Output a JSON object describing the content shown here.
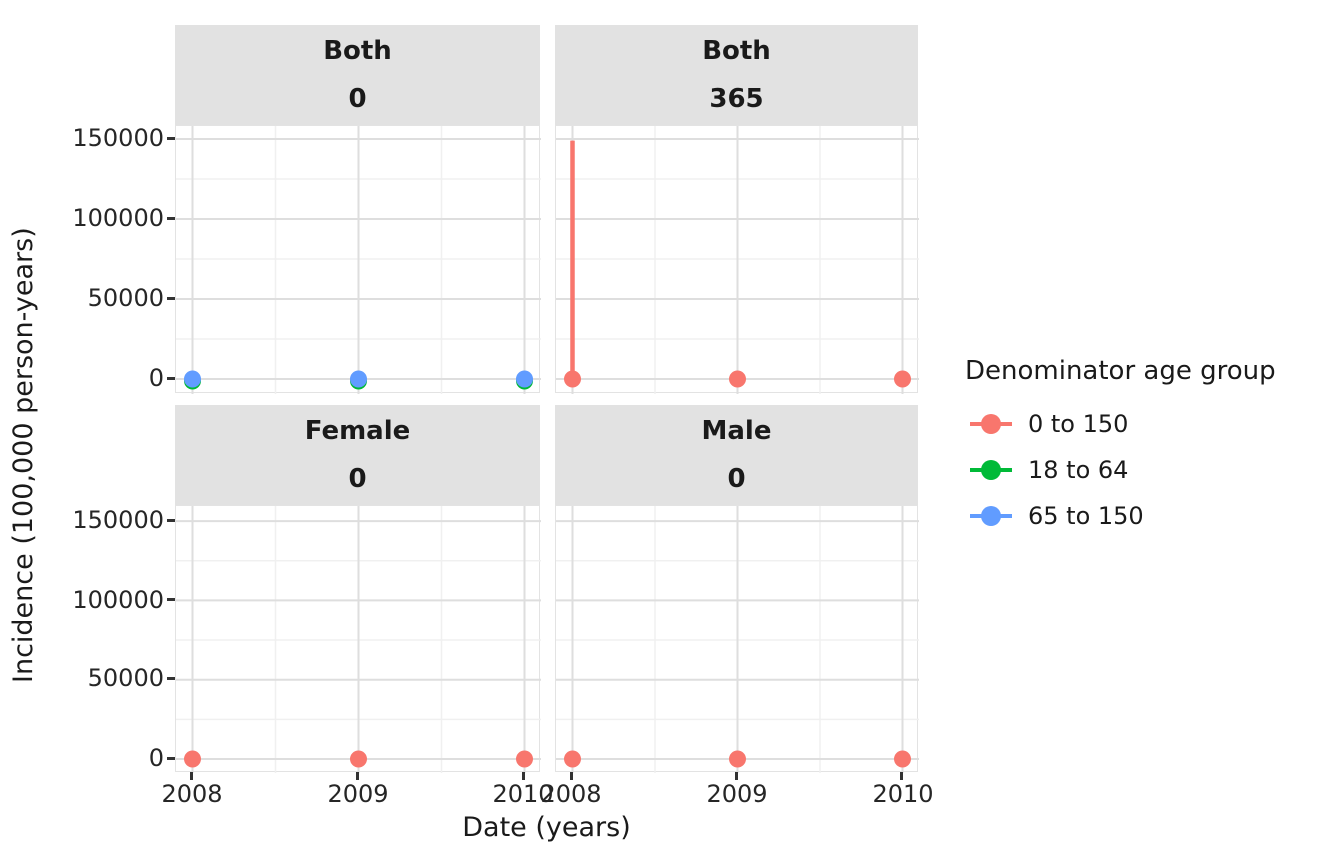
{
  "figure": {
    "background": "#FFFFFF",
    "x_axis_title": "Date (years)",
    "y_axis_title": "Incidence (100,000 person-years)"
  },
  "axes": {
    "x_tick_labels": [
      "2008",
      "2009",
      "2010"
    ],
    "y_tick_labels": [
      "0",
      "50000",
      "100000",
      "150000"
    ]
  },
  "legend": {
    "title": "Denominator age group",
    "items": [
      {
        "label": "0 to 150",
        "color": "#F8766D"
      },
      {
        "label": "18 to 64",
        "color": "#00BA38"
      },
      {
        "label": "65 to 150",
        "color": "#619CFF"
      }
    ]
  },
  "chart_data": {
    "type": "scatter",
    "title": "",
    "xlabel": "Date (years)",
    "ylabel": "Incidence (100,000 person-years)",
    "x_ticks": [
      2008,
      2009,
      2010
    ],
    "y_ticks": [
      0,
      50000,
      100000,
      150000
    ],
    "x_minor_gridlines": [
      2008.5,
      2009.5
    ],
    "y_minor_gridlines": [
      25000,
      75000,
      125000
    ],
    "xlim": [
      2007.9,
      2010.1
    ],
    "ylim": [
      -7800,
      157500
    ],
    "grid": true,
    "legend_position": "right",
    "facets": [
      {
        "strip_line1": "Both",
        "strip_line2": "0",
        "row": 0,
        "col": 0,
        "series": [
          {
            "name": "18 to 64",
            "points": [
              {
                "x": 2008,
                "y": 0
              },
              {
                "x": 2009,
                "y": 0
              },
              {
                "x": 2010,
                "y": 0
              }
            ]
          },
          {
            "name": "65 to 150",
            "points": [
              {
                "x": 2008,
                "y": 0
              },
              {
                "x": 2009,
                "y": 0
              },
              {
                "x": 2010,
                "y": 0
              }
            ]
          }
        ],
        "errorbars": []
      },
      {
        "strip_line1": "Both",
        "strip_line2": "365",
        "row": 0,
        "col": 1,
        "series": [
          {
            "name": "0 to 150",
            "points": [
              {
                "x": 2008,
                "y": 0
              },
              {
                "x": 2009,
                "y": 0
              },
              {
                "x": 2010,
                "y": 0
              }
            ]
          }
        ],
        "errorbars": [
          {
            "series": "0 to 150",
            "x": 2008,
            "ymin": 0,
            "ymax": 149000
          }
        ]
      },
      {
        "strip_line1": "Female",
        "strip_line2": "0",
        "row": 1,
        "col": 0,
        "series": [
          {
            "name": "0 to 150",
            "points": [
              {
                "x": 2008,
                "y": 0
              },
              {
                "x": 2009,
                "y": 0
              },
              {
                "x": 2010,
                "y": 0
              }
            ]
          }
        ],
        "errorbars": []
      },
      {
        "strip_line1": "Male",
        "strip_line2": "0",
        "row": 1,
        "col": 1,
        "series": [
          {
            "name": "0 to 150",
            "points": [
              {
                "x": 2008,
                "y": 0
              },
              {
                "x": 2009,
                "y": 0
              },
              {
                "x": 2010,
                "y": 0
              }
            ]
          }
        ],
        "errorbars": []
      }
    ]
  },
  "style": {
    "strip_background": "#E2E2E2",
    "panel_background": "#FFFFFF",
    "panel_border": "#E3E3E3",
    "grid_major": "#DEDEDE",
    "grid_minor": "#F0F0F0",
    "tick_color": "#333333",
    "text_color": "#1A1A1A",
    "axis_text_color": "#262626"
  }
}
